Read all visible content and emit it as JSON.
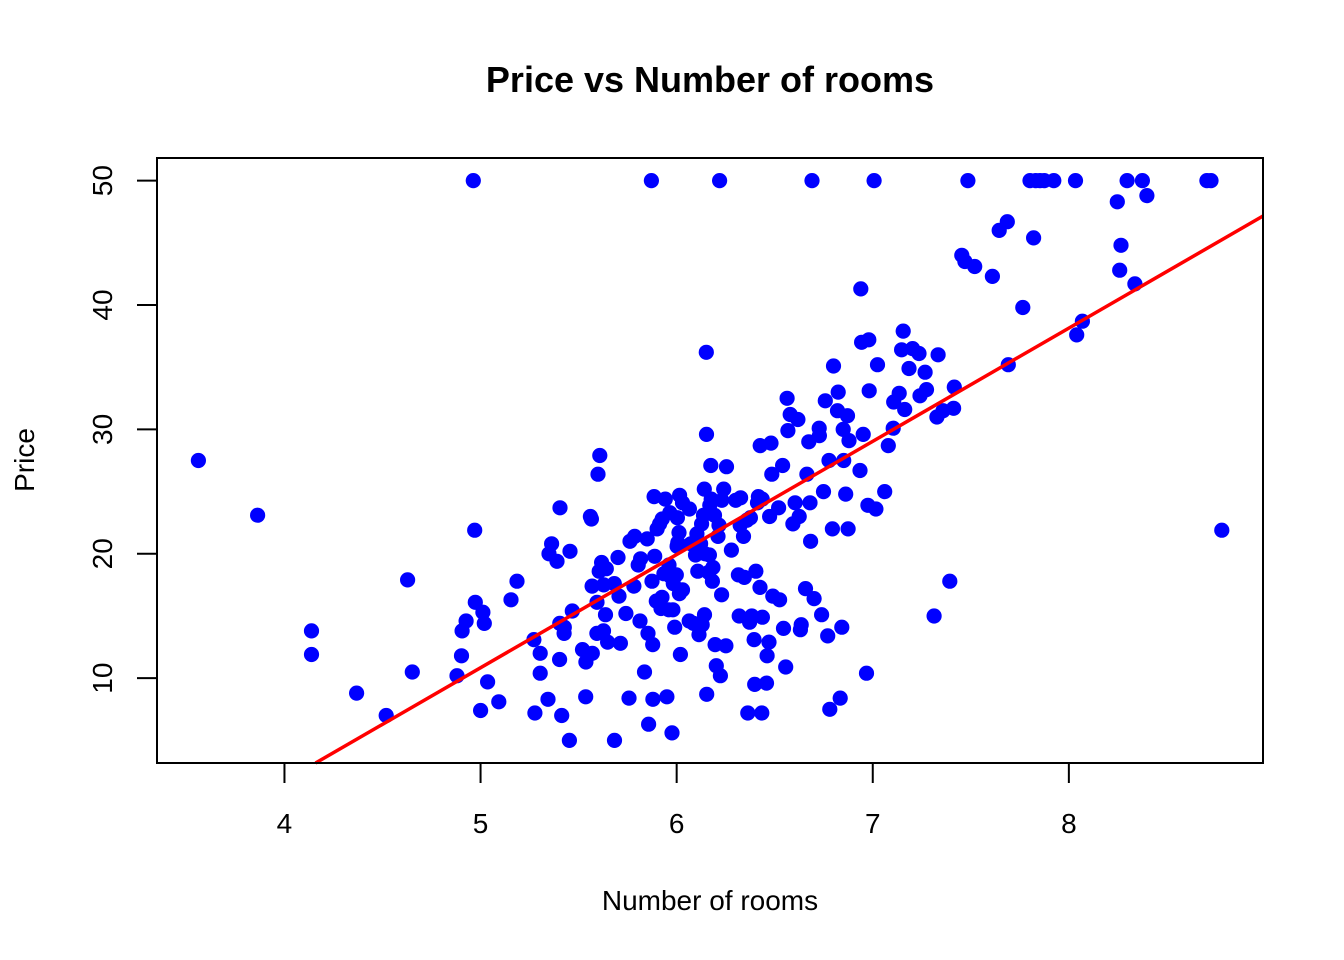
{
  "chart_data": {
    "type": "scatter",
    "title": "Price vs Number of rooms",
    "xlabel": "Number of rooms",
    "ylabel": "Price",
    "xlim": [
      3.35,
      8.99
    ],
    "ylim": [
      3.18,
      51.82
    ],
    "xticks": [
      4,
      5,
      6,
      7,
      8
    ],
    "yticks": [
      10,
      20,
      30,
      40,
      50
    ],
    "grid": false,
    "legend": "none",
    "colors": {
      "points": "#0000ff",
      "fit_line": "#ff0000",
      "frame": "#000000"
    },
    "fit_line": {
      "slope": 9.102,
      "intercept": -34.671
    },
    "points": [
      [
        3.561,
        27.5
      ],
      [
        3.863,
        23.1
      ],
      [
        4.138,
        13.8
      ],
      [
        4.138,
        11.9
      ],
      [
        4.368,
        8.8
      ],
      [
        4.519,
        7.0
      ],
      [
        4.628,
        17.9
      ],
      [
        4.652,
        10.5
      ],
      [
        4.88,
        10.2
      ],
      [
        4.903,
        11.8
      ],
      [
        4.906,
        13.8
      ],
      [
        4.926,
        14.6
      ],
      [
        4.963,
        50.0
      ],
      [
        4.97,
        21.9
      ],
      [
        4.973,
        16.1
      ],
      [
        5.0,
        7.4
      ],
      [
        5.012,
        15.3
      ],
      [
        5.019,
        14.4
      ],
      [
        5.036,
        9.7
      ],
      [
        5.093,
        8.1
      ],
      [
        5.155,
        16.3
      ],
      [
        5.186,
        17.8
      ],
      [
        5.272,
        13.1
      ],
      [
        5.277,
        7.2
      ],
      [
        5.304,
        10.4
      ],
      [
        5.304,
        12.0
      ],
      [
        5.344,
        8.3
      ],
      [
        5.349,
        20.0
      ],
      [
        5.362,
        20.8
      ],
      [
        5.39,
        19.4
      ],
      [
        5.403,
        11.5
      ],
      [
        5.404,
        14.4
      ],
      [
        5.405,
        23.7
      ],
      [
        5.414,
        7.0
      ],
      [
        5.426,
        13.6
      ],
      [
        5.427,
        14.1
      ],
      [
        5.453,
        5.0
      ],
      [
        5.456,
        20.2
      ],
      [
        5.468,
        15.4
      ],
      [
        5.52,
        12.3
      ],
      [
        5.536,
        8.5
      ],
      [
        5.537,
        11.3
      ],
      [
        5.56,
        23.0
      ],
      [
        5.565,
        22.8
      ],
      [
        5.569,
        17.4
      ],
      [
        5.57,
        12.0
      ],
      [
        5.593,
        13.6
      ],
      [
        5.594,
        16.1
      ],
      [
        5.599,
        26.4
      ],
      [
        5.605,
        18.6
      ],
      [
        5.608,
        27.9
      ],
      [
        5.617,
        19.3
      ],
      [
        5.627,
        13.8
      ],
      [
        5.628,
        17.5
      ],
      [
        5.637,
        15.1
      ],
      [
        5.641,
        18.8
      ],
      [
        5.648,
        12.9
      ],
      [
        5.682,
        17.6
      ],
      [
        5.683,
        5.0
      ],
      [
        5.701,
        19.7
      ],
      [
        5.706,
        16.6
      ],
      [
        5.713,
        12.8
      ],
      [
        5.741,
        15.2
      ],
      [
        5.757,
        8.4
      ],
      [
        5.762,
        21.0
      ],
      [
        5.782,
        17.4
      ],
      [
        5.786,
        21.4
      ],
      [
        5.804,
        19.1
      ],
      [
        5.813,
        14.6
      ],
      [
        5.816,
        19.6
      ],
      [
        5.836,
        10.5
      ],
      [
        5.85,
        21.2
      ],
      [
        5.854,
        13.6
      ],
      [
        5.857,
        6.3
      ],
      [
        5.871,
        50.0
      ],
      [
        5.874,
        17.8
      ],
      [
        5.878,
        12.7
      ],
      [
        5.879,
        8.3
      ],
      [
        5.885,
        24.6
      ],
      [
        5.888,
        19.8
      ],
      [
        5.896,
        16.2
      ],
      [
        5.9,
        22.0
      ],
      [
        5.913,
        22.4
      ],
      [
        5.92,
        15.6
      ],
      [
        5.925,
        16.5
      ],
      [
        5.926,
        22.8
      ],
      [
        5.935,
        18.4
      ],
      [
        5.942,
        24.4
      ],
      [
        5.95,
        8.5
      ],
      [
        5.96,
        15.5
      ],
      [
        5.961,
        19.1
      ],
      [
        5.965,
        23.3
      ],
      [
        5.968,
        18.2
      ],
      [
        5.976,
        5.6
      ],
      [
        5.981,
        15.5
      ],
      [
        5.983,
        17.6
      ],
      [
        5.99,
        14.1
      ],
      [
        5.998,
        18.3
      ],
      [
        6.002,
        20.6
      ],
      [
        6.004,
        22.9
      ],
      [
        6.006,
        20.9
      ],
      [
        6.012,
        21.7
      ],
      [
        6.014,
        16.8
      ],
      [
        6.015,
        24.7
      ],
      [
        6.019,
        11.9
      ],
      [
        6.03,
        24.1
      ],
      [
        6.03,
        17.1
      ],
      [
        6.064,
        14.6
      ],
      [
        6.065,
        23.6
      ],
      [
        6.072,
        20.8
      ],
      [
        6.086,
        14.4
      ],
      [
        6.096,
        19.9
      ],
      [
        6.103,
        21.6
      ],
      [
        6.108,
        18.6
      ],
      [
        6.114,
        13.5
      ],
      [
        6.122,
        20.8
      ],
      [
        6.127,
        22.4
      ],
      [
        6.13,
        14.3
      ],
      [
        6.137,
        23.1
      ],
      [
        6.141,
        25.2
      ],
      [
        6.142,
        15.1
      ],
      [
        6.145,
        20.0
      ],
      [
        6.151,
        36.2
      ],
      [
        6.152,
        29.6
      ],
      [
        6.153,
        8.7
      ],
      [
        6.163,
        18.5
      ],
      [
        6.167,
        19.9
      ],
      [
        6.169,
        23.9
      ],
      [
        6.174,
        27.1
      ],
      [
        6.176,
        24.4
      ],
      [
        6.182,
        17.8
      ],
      [
        6.185,
        18.9
      ],
      [
        6.193,
        23.1
      ],
      [
        6.196,
        12.7
      ],
      [
        6.202,
        11.0
      ],
      [
        6.211,
        21.4
      ],
      [
        6.216,
        22.3
      ],
      [
        6.219,
        50.0
      ],
      [
        6.223,
        10.2
      ],
      [
        6.229,
        16.7
      ],
      [
        6.23,
        24.3
      ],
      [
        6.24,
        25.2
      ],
      [
        6.251,
        12.6
      ],
      [
        6.254,
        27.0
      ],
      [
        6.279,
        20.3
      ],
      [
        6.301,
        24.3
      ],
      [
        6.315,
        18.3
      ],
      [
        6.319,
        15.0
      ],
      [
        6.324,
        22.3
      ],
      [
        6.326,
        24.5
      ],
      [
        6.341,
        21.4
      ],
      [
        6.345,
        18.1
      ],
      [
        6.358,
        22.7
      ],
      [
        6.363,
        7.2
      ],
      [
        6.372,
        14.5
      ],
      [
        6.376,
        22.9
      ],
      [
        6.383,
        15.0
      ],
      [
        6.395,
        13.1
      ],
      [
        6.398,
        9.5
      ],
      [
        6.404,
        18.6
      ],
      [
        6.412,
        24.1
      ],
      [
        6.417,
        24.6
      ],
      [
        6.425,
        17.3
      ],
      [
        6.426,
        28.7
      ],
      [
        6.434,
        7.2
      ],
      [
        6.436,
        24.4
      ],
      [
        6.437,
        14.9
      ],
      [
        6.458,
        9.6
      ],
      [
        6.461,
        11.8
      ],
      [
        6.471,
        12.9
      ],
      [
        6.474,
        23.0
      ],
      [
        6.481,
        28.9
      ],
      [
        6.485,
        26.4
      ],
      [
        6.49,
        16.6
      ],
      [
        6.52,
        23.7
      ],
      [
        6.525,
        16.3
      ],
      [
        6.54,
        27.1
      ],
      [
        6.545,
        14.0
      ],
      [
        6.556,
        10.9
      ],
      [
        6.563,
        32.5
      ],
      [
        6.567,
        29.9
      ],
      [
        6.579,
        31.2
      ],
      [
        6.593,
        22.4
      ],
      [
        6.604,
        24.1
      ],
      [
        6.618,
        30.8
      ],
      [
        6.625,
        23.0
      ],
      [
        6.631,
        13.9
      ],
      [
        6.635,
        14.3
      ],
      [
        6.657,
        17.2
      ],
      [
        6.664,
        26.4
      ],
      [
        6.674,
        29.0
      ],
      [
        6.68,
        24.1
      ],
      [
        6.683,
        21.0
      ],
      [
        6.69,
        50.0
      ],
      [
        6.701,
        16.4
      ],
      [
        6.727,
        30.1
      ],
      [
        6.728,
        29.5
      ],
      [
        6.739,
        15.1
      ],
      [
        6.749,
        25.0
      ],
      [
        6.758,
        32.3
      ],
      [
        6.77,
        13.4
      ],
      [
        6.777,
        27.5
      ],
      [
        6.781,
        7.5
      ],
      [
        6.794,
        22.0
      ],
      [
        6.8,
        35.1
      ],
      [
        6.82,
        31.5
      ],
      [
        6.824,
        33.0
      ],
      [
        6.834,
        8.4
      ],
      [
        6.842,
        14.1
      ],
      [
        6.849,
        30.0
      ],
      [
        6.852,
        27.5
      ],
      [
        6.862,
        24.8
      ],
      [
        6.871,
        31.1
      ],
      [
        6.874,
        22.0
      ],
      [
        6.879,
        29.1
      ],
      [
        6.935,
        26.7
      ],
      [
        6.939,
        41.3
      ],
      [
        6.943,
        37.0
      ],
      [
        6.951,
        29.6
      ],
      [
        6.968,
        10.4
      ],
      [
        6.975,
        23.9
      ],
      [
        6.98,
        37.2
      ],
      [
        6.982,
        33.1
      ],
      [
        7.007,
        50.0
      ],
      [
        7.016,
        23.6
      ],
      [
        7.024,
        35.2
      ],
      [
        7.061,
        25.0
      ],
      [
        7.079,
        28.7
      ],
      [
        7.104,
        30.1
      ],
      [
        7.107,
        32.2
      ],
      [
        7.135,
        32.9
      ],
      [
        7.147,
        36.4
      ],
      [
        7.155,
        37.9
      ],
      [
        7.163,
        31.6
      ],
      [
        7.185,
        34.9
      ],
      [
        7.203,
        36.5
      ],
      [
        7.236,
        36.1
      ],
      [
        7.241,
        32.7
      ],
      [
        7.267,
        34.6
      ],
      [
        7.274,
        33.2
      ],
      [
        7.313,
        15.0
      ],
      [
        7.327,
        31.0
      ],
      [
        7.333,
        36.0
      ],
      [
        7.358,
        31.5
      ],
      [
        7.393,
        17.8
      ],
      [
        7.412,
        31.7
      ],
      [
        7.416,
        33.4
      ],
      [
        7.454,
        44.0
      ],
      [
        7.47,
        43.5
      ],
      [
        7.485,
        50.0
      ],
      [
        7.52,
        43.1
      ],
      [
        7.61,
        42.3
      ],
      [
        7.645,
        46.0
      ],
      [
        7.686,
        46.7
      ],
      [
        7.691,
        35.2
      ],
      [
        7.765,
        39.8
      ],
      [
        7.802,
        50.0
      ],
      [
        7.82,
        45.4
      ],
      [
        7.831,
        50.0
      ],
      [
        7.853,
        50.0
      ],
      [
        7.875,
        50.0
      ],
      [
        7.923,
        50.0
      ],
      [
        8.034,
        50.0
      ],
      [
        8.04,
        37.6
      ],
      [
        8.069,
        38.7
      ],
      [
        8.247,
        48.3
      ],
      [
        8.259,
        42.8
      ],
      [
        8.266,
        44.8
      ],
      [
        8.297,
        50.0
      ],
      [
        8.337,
        41.7
      ],
      [
        8.375,
        50.0
      ],
      [
        8.398,
        48.8
      ],
      [
        8.704,
        50.0
      ],
      [
        8.725,
        50.0
      ],
      [
        8.78,
        21.9
      ]
    ]
  }
}
